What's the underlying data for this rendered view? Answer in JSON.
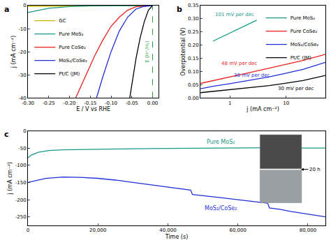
{
  "chart_data": [
    {
      "type": "line",
      "panel": "a",
      "x_label": "E / V vs RHE",
      "y_label": "j (mA cm⁻²)",
      "xlim": [
        -0.3,
        0.015
      ],
      "ylim": [
        -40,
        0
      ],
      "xticks": [
        {
          "value": -0.3,
          "label": "-0.30"
        },
        -0.25,
        {
          "value": -0.2,
          "label": "-0.20"
        },
        -0.15,
        {
          "value": -0.1,
          "label": "-0.10"
        },
        -0.05,
        {
          "value": 0,
          "label": "0.00"
        }
      ],
      "yticks": [
        -40,
        -30,
        -20,
        -10,
        0
      ],
      "grid": false,
      "legend": "center left",
      "vlines": [
        {
          "x": 0,
          "color": "#2e9e3e",
          "line_style": "dashed",
          "label": "E (H⁺/H₂)"
        }
      ],
      "series": [
        {
          "name": "GC",
          "color": "#c9b400",
          "x": [
            0,
            -0.1,
            -0.2,
            -0.3
          ],
          "values": [
            0,
            -0.05,
            -0.15,
            -0.3
          ]
        },
        {
          "name": "Pure MoS₂",
          "color": "#17998a",
          "x": [
            0,
            -0.1,
            -0.15,
            -0.2,
            -0.25,
            -0.3
          ],
          "values": [
            0,
            -0.05,
            -0.1,
            -0.4,
            -1.2,
            -3
          ]
        },
        {
          "name": "Pure CoSe₂",
          "color": "#e8211c",
          "x": [
            0,
            -0.04,
            -0.06,
            -0.08,
            -0.1,
            -0.12,
            -0.14,
            -0.16,
            -0.185
          ],
          "values": [
            0,
            -0.5,
            -2,
            -5,
            -9,
            -15,
            -22,
            -30,
            -40
          ]
        },
        {
          "name": "MoS₂/CoSe₂",
          "color": "#1f2fd6",
          "x": [
            0,
            -0.02,
            -0.04,
            -0.06,
            -0.08,
            -0.1,
            -0.12,
            -0.135
          ],
          "values": [
            0,
            -0.3,
            -1.5,
            -5,
            -11,
            -20,
            -31,
            -40
          ]
        },
        {
          "name": "Pt/C (JM)",
          "color": "#000000",
          "x": [
            0,
            -0.01,
            -0.02,
            -0.03,
            -0.04,
            -0.05,
            -0.055
          ],
          "values": [
            0,
            -2,
            -7,
            -14,
            -23,
            -34,
            -40
          ]
        }
      ]
    },
    {
      "type": "line",
      "panel": "b",
      "x_label": "j (mA cm⁻²)",
      "y_label": "Overpotential (V)",
      "log": "x",
      "xlim": [
        0.3,
        50
      ],
      "ylim": [
        0,
        0.35
      ],
      "xticks": [
        1,
        10
      ],
      "yticks": [
        {
          "value": 0,
          "label": "0.00"
        },
        0.05,
        {
          "value": 0.1,
          "label": "0.10"
        },
        0.15,
        {
          "value": 0.2,
          "label": "0.20"
        },
        0.25,
        {
          "value": 0.3,
          "label": "0.30"
        },
        0.35
      ],
      "grid": false,
      "legend": "upper right",
      "annotations": [
        {
          "text": "101 mV per dec",
          "x": 1.2,
          "y": 0.315,
          "color": "#17998a"
        },
        {
          "text": "48 mV per dec",
          "x": 1.5,
          "y": 0.131,
          "color": "#e8211c"
        },
        {
          "text": "36 mV per dec",
          "x": 2.5,
          "y": 0.085,
          "color": "#1f2fd6"
        },
        {
          "text": "30 mV per dec",
          "x": 15,
          "y": 0.034,
          "color": "#000000"
        }
      ],
      "series": [
        {
          "name": "Pure MoS₂",
          "color": "#17998a",
          "x": [
            0.5,
            0.7,
            1,
            1.5,
            2,
            3
          ],
          "values": [
            0.215,
            0.23,
            0.245,
            0.262,
            0.275,
            0.295
          ]
        },
        {
          "name": "Pure CoSe₂",
          "color": "#e8211c",
          "x": [
            0.3,
            0.5,
            1,
            2,
            5,
            10,
            20,
            50
          ],
          "values": [
            0.055,
            0.066,
            0.08,
            0.094,
            0.113,
            0.128,
            0.142,
            0.165
          ]
        },
        {
          "name": "MoS₂/CoSe₂",
          "color": "#1f2fd6",
          "x": [
            0.3,
            0.5,
            1,
            2,
            5,
            10,
            20,
            50
          ],
          "values": [
            0.035,
            0.044,
            0.054,
            0.065,
            0.08,
            0.094,
            0.108,
            0.135
          ]
        },
        {
          "name": "Pt/C (JM)",
          "color": "#000000",
          "x": [
            0.3,
            0.5,
            1,
            2,
            5,
            10,
            20,
            50
          ],
          "values": [
            0.02,
            0.025,
            0.03,
            0.037,
            0.047,
            0.056,
            0.066,
            0.085
          ]
        }
      ]
    },
    {
      "type": "line",
      "panel": "c",
      "x_label": "Time (s)",
      "y_label": "j (mA cm⁻²)",
      "xlim": [
        0,
        85000
      ],
      "ylim": [
        -275,
        0
      ],
      "xticks": [
        0,
        {
          "value": 20000,
          "label": "20,000"
        },
        {
          "value": 40000,
          "label": "40,000"
        },
        {
          "value": 60000,
          "label": "60,000"
        },
        {
          "value": 80000,
          "label": "80,000"
        }
      ],
      "yticks": [
        -250,
        -200,
        -150,
        -100,
        -50,
        0
      ],
      "grid": false,
      "annotations": [
        {
          "text": "20 h",
          "x": 78000,
          "y": -112,
          "color": "#000000",
          "marker": "arrow"
        }
      ],
      "series": [
        {
          "name": "Pure MoS₂",
          "color": "#17998a",
          "label": {
            "x": 55000,
            "y": -32
          },
          "x": [
            0,
            1000,
            3000,
            6000,
            10000,
            20000,
            30000,
            40000,
            50000,
            60000,
            70000,
            80000,
            85000
          ],
          "values": [
            -78,
            -70,
            -62,
            -57,
            -55,
            -53,
            -52,
            -51,
            -50,
            -50,
            -49,
            -50,
            -50
          ]
        },
        {
          "name": "MoS₂/CoSe₂",
          "color": "#1f2fd6",
          "label": {
            "x": 55000,
            "y": -225
          },
          "x": [
            0,
            2000,
            5000,
            10000,
            15000,
            20000,
            25000,
            30000,
            35000,
            40000,
            45000,
            46500,
            47000,
            50000,
            55000,
            60000,
            65000,
            68500,
            69000,
            72000,
            75000,
            80000,
            85000
          ],
          "values": [
            -150,
            -145,
            -138,
            -134,
            -135,
            -138,
            -143,
            -150,
            -157,
            -163,
            -170,
            -172,
            -185,
            -188,
            -194,
            -200,
            -206,
            -210,
            -224,
            -228,
            -234,
            -242,
            -250
          ]
        }
      ]
    }
  ]
}
